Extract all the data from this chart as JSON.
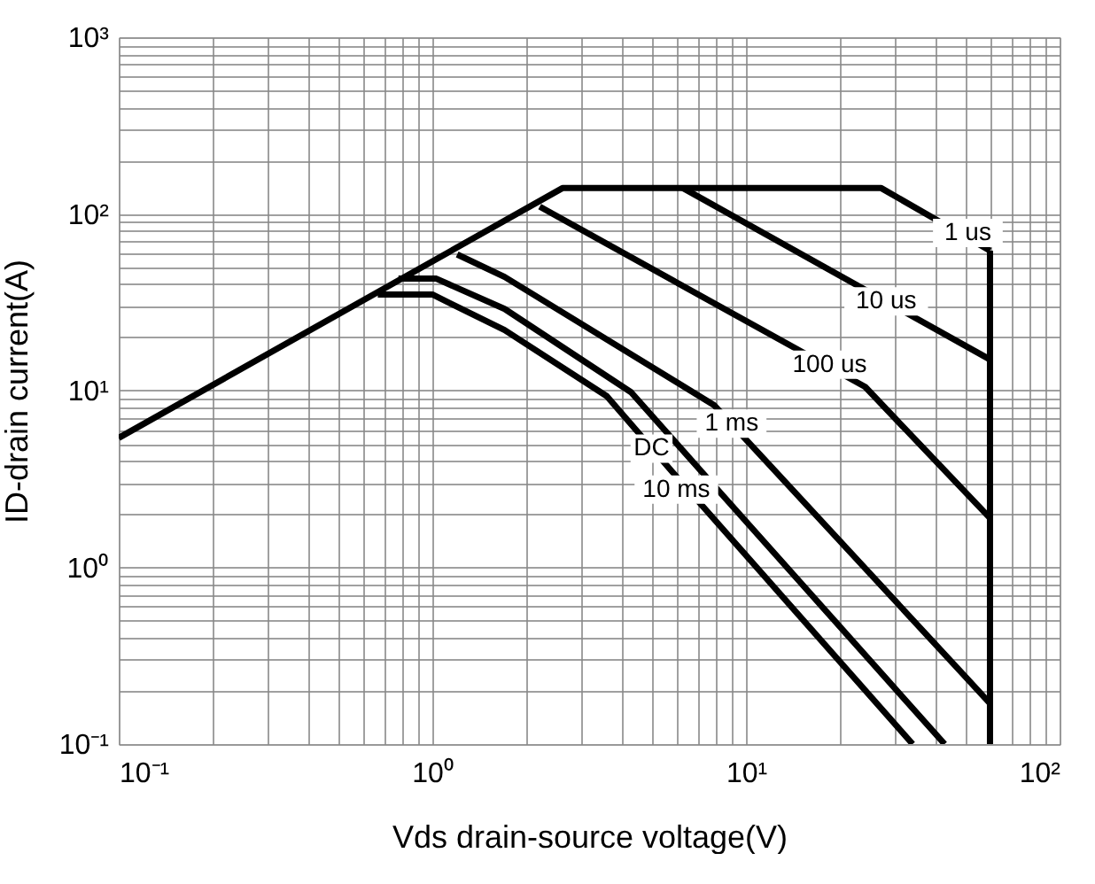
{
  "chart_data": {
    "type": "line",
    "xlabel": "Vds drain-source voltage(V)",
    "ylabel": "ID-drain current(A)",
    "log": "xy",
    "grid": true,
    "legend": false,
    "marker": "none",
    "line_style": "solid",
    "xlim": [
      0.1,
      100
    ],
    "ylim": [
      0.1,
      1000
    ],
    "xticks": [
      {
        "value": 0.1,
        "label": "10⁻¹"
      },
      {
        "value": 0.2,
        "label": null
      },
      {
        "value": 0.3,
        "label": null
      },
      {
        "value": 0.4,
        "label": null
      },
      {
        "value": 0.5,
        "label": null
      },
      {
        "value": 0.6,
        "label": null
      },
      {
        "value": 0.7,
        "label": null
      },
      {
        "value": 0.8,
        "label": null
      },
      {
        "value": 0.9,
        "label": null
      },
      {
        "value": 1,
        "label": "10⁰"
      },
      {
        "value": 2,
        "label": null
      },
      {
        "value": 3,
        "label": null
      },
      {
        "value": 4,
        "label": null
      },
      {
        "value": 5,
        "label": null
      },
      {
        "value": 6,
        "label": null
      },
      {
        "value": 7,
        "label": null
      },
      {
        "value": 8,
        "label": null
      },
      {
        "value": 9,
        "label": null
      },
      {
        "value": 10,
        "label": "10¹"
      },
      {
        "value": 20,
        "label": null
      },
      {
        "value": 30,
        "label": null
      },
      {
        "value": 40,
        "label": null
      },
      {
        "value": 50,
        "label": null
      },
      {
        "value": 60,
        "label": null
      },
      {
        "value": 70,
        "label": null
      },
      {
        "value": 80,
        "label": null
      },
      {
        "value": 90,
        "label": null
      },
      {
        "value": 100,
        "label": "10²"
      }
    ],
    "yticks": [
      {
        "value": 0.1,
        "label": "10⁻¹"
      },
      {
        "value": 0.2,
        "label": null
      },
      {
        "value": 0.3,
        "label": null
      },
      {
        "value": 0.4,
        "label": null
      },
      {
        "value": 0.5,
        "label": null
      },
      {
        "value": 0.6,
        "label": null
      },
      {
        "value": 0.7,
        "label": null
      },
      {
        "value": 0.8,
        "label": null
      },
      {
        "value": 0.9,
        "label": null
      },
      {
        "value": 1,
        "label": "10⁰"
      },
      {
        "value": 2,
        "label": null
      },
      {
        "value": 3,
        "label": null
      },
      {
        "value": 4,
        "label": null
      },
      {
        "value": 5,
        "label": null
      },
      {
        "value": 6,
        "label": null
      },
      {
        "value": 7,
        "label": null
      },
      {
        "value": 8,
        "label": null
      },
      {
        "value": 9,
        "label": null
      },
      {
        "value": 10,
        "label": "10¹"
      },
      {
        "value": 20,
        "label": null
      },
      {
        "value": 30,
        "label": null
      },
      {
        "value": 40,
        "label": null
      },
      {
        "value": 50,
        "label": null
      },
      {
        "value": 60,
        "label": null
      },
      {
        "value": 70,
        "label": null
      },
      {
        "value": 80,
        "label": null
      },
      {
        "value": 90,
        "label": null
      },
      {
        "value": 100,
        "label": "10²"
      },
      {
        "value": 200,
        "label": null
      },
      {
        "value": 300,
        "label": null
      },
      {
        "value": 400,
        "label": null
      },
      {
        "value": 500,
        "label": null
      },
      {
        "value": 600,
        "label": null
      },
      {
        "value": 700,
        "label": null
      },
      {
        "value": 800,
        "label": null
      },
      {
        "value": 900,
        "label": null
      },
      {
        "value": 1000,
        "label": "10³"
      }
    ],
    "series": [
      {
        "color": "#000000",
        "x": [
          0.1,
          2.6,
          27,
          60
        ],
        "values": [
          5.4,
          140,
          140,
          62
        ]
      },
      {
        "color": "#000000",
        "x": [
          60,
          60
        ],
        "values": [
          62,
          0.1
        ]
      },
      {
        "color": "#000000",
        "x": [
          6.3,
          60
        ],
        "values": [
          140,
          15
        ]
      },
      {
        "color": "#000000",
        "x": [
          2.2,
          24,
          60
        ],
        "values": [
          110,
          10.5,
          1.9
        ]
      },
      {
        "color": "#000000",
        "x": [
          1.2,
          1.7,
          7.9,
          10.3,
          60
        ],
        "values": [
          59,
          44,
          8.3,
          5.0,
          0.17
        ]
      },
      {
        "color": "#000000",
        "x": [
          0.78,
          1.03,
          1.7,
          4.3,
          7.2,
          43
        ],
        "values": [
          43,
          43,
          29,
          9.8,
          3.5,
          0.1
        ]
      },
      {
        "color": "#000000",
        "x": [
          0.67,
          1.0,
          1.7,
          3.6,
          5.8,
          34
        ],
        "values": [
          35,
          35,
          22,
          9.3,
          3.5,
          0.1
        ]
      }
    ],
    "annotations": [
      {
        "text": "1 us",
        "x": 51,
        "y": 78
      },
      {
        "text": "10 us",
        "x": 28,
        "y": 32
      },
      {
        "text": "100 us",
        "x": 18.5,
        "y": 14
      },
      {
        "text": "1 ms",
        "x": 9,
        "y": 6.5
      },
      {
        "text": "DC",
        "x": 5,
        "y": 4.7
      },
      {
        "text": "10 ms",
        "x": 6,
        "y": 2.75
      }
    ]
  }
}
